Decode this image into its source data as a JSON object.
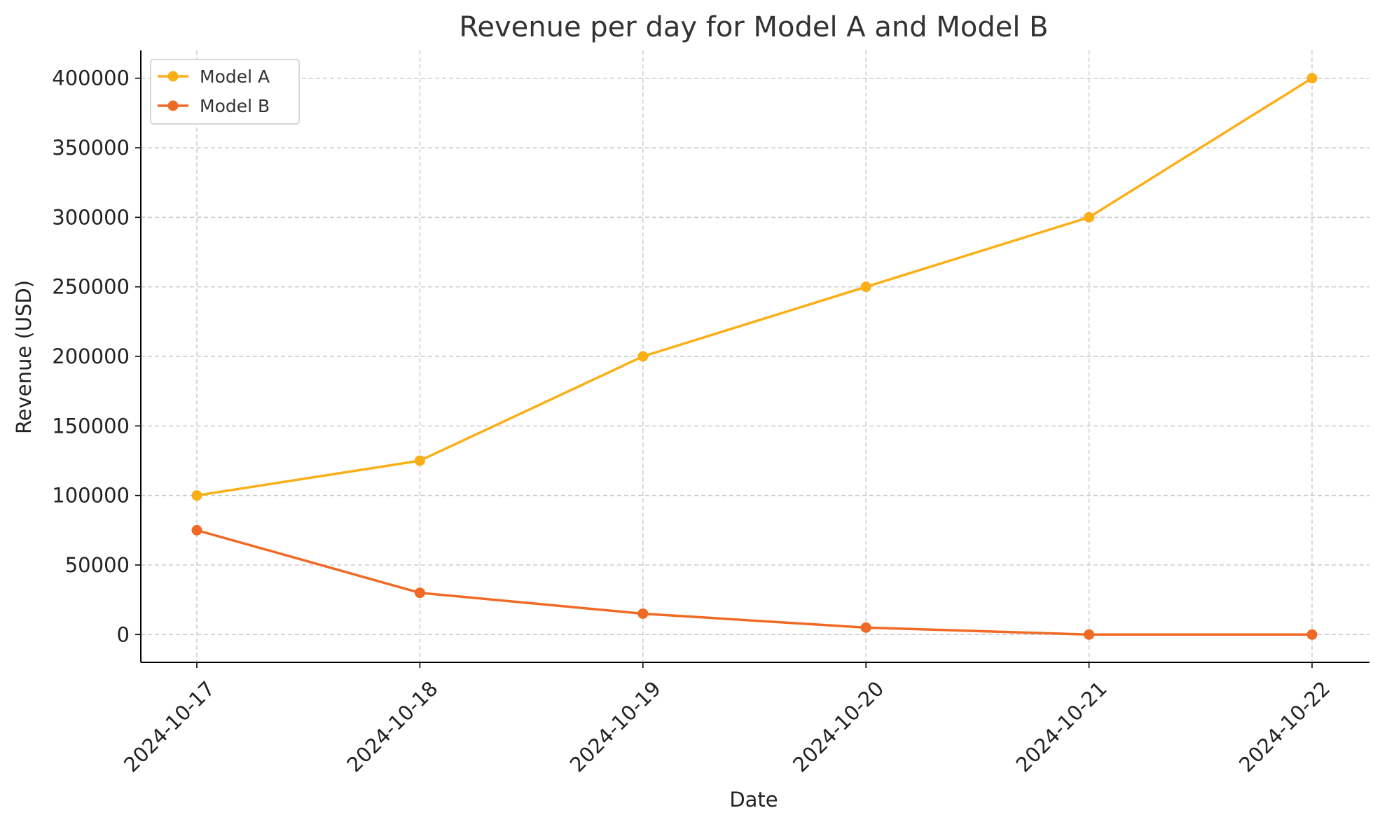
{
  "chart_data": {
    "type": "line",
    "title": "Revenue per day for Model A and Model B",
    "xlabel": "Date",
    "ylabel": "Revenue (USD)",
    "categories": [
      "2024-10-17",
      "2024-10-18",
      "2024-10-19",
      "2024-10-20",
      "2024-10-21",
      "2024-10-22"
    ],
    "ylim": [
      -20000,
      420000
    ],
    "yticks": [
      0,
      50000,
      100000,
      150000,
      200000,
      250000,
      300000,
      350000,
      400000
    ],
    "grid": true,
    "legend_position": "top-left",
    "series": [
      {
        "name": "Model A",
        "color": "#FBAF17",
        "values": [
          100000,
          125000,
          200000,
          250000,
          300000,
          400000
        ]
      },
      {
        "name": "Model B",
        "color": "#F06A25",
        "values": [
          75000,
          30000,
          15000,
          5000,
          0,
          0
        ]
      }
    ]
  }
}
